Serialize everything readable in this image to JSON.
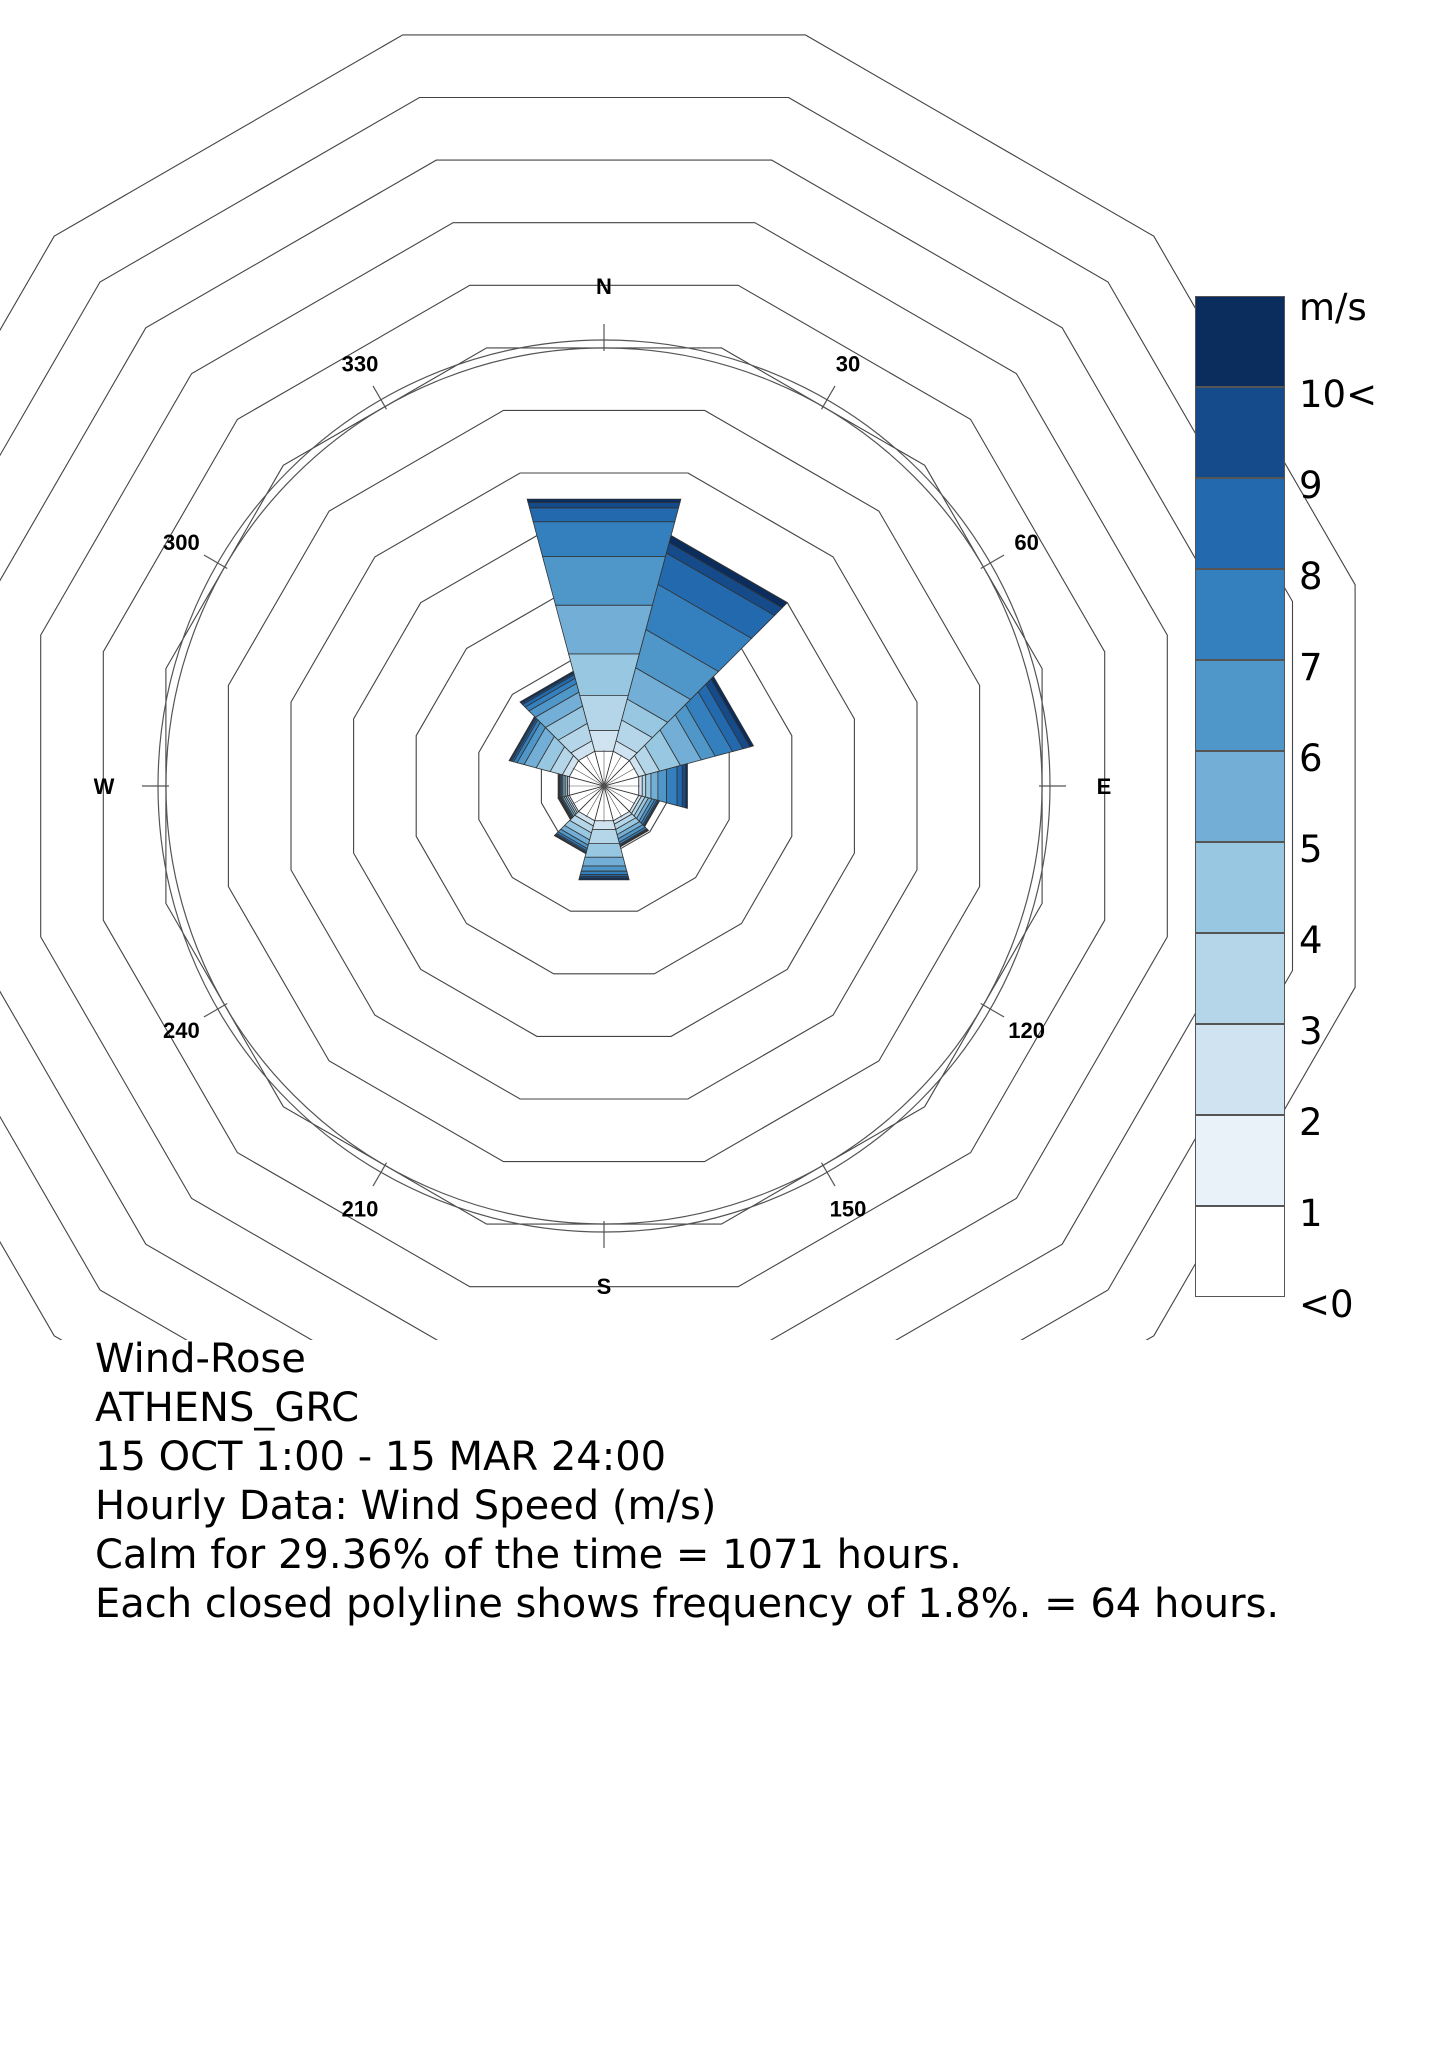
{
  "chart_data": {
    "type": "wind-rose",
    "title": "Wind-Rose",
    "directions": [
      "N",
      "30",
      "60",
      "E",
      "120",
      "150",
      "S",
      "210",
      "240",
      "W",
      "300",
      "330"
    ],
    "direction_degrees": [
      0,
      30,
      60,
      90,
      120,
      150,
      180,
      210,
      240,
      270,
      300,
      330
    ],
    "speed_bins": [
      "<0",
      "1",
      "2",
      "3",
      "4",
      "5",
      "6",
      "7",
      "8",
      "9",
      "10<"
    ],
    "units": "m/s",
    "ring_step_percent": 1.8,
    "ring_step_hours": 64,
    "ring_count": 12,
    "frequencies_percent": {
      "0": [
        1.0,
        0.0,
        0.6,
        1.0,
        1.2,
        1.4,
        1.4,
        1.0,
        0.4,
        0.15,
        0.1
      ],
      "30": [
        1.0,
        0.0,
        0.3,
        0.6,
        0.6,
        0.9,
        1.1,
        1.3,
        0.9,
        0.3,
        0.2
      ],
      "60": [
        1.0,
        0.0,
        0.2,
        0.4,
        0.6,
        0.6,
        0.4,
        0.5,
        0.3,
        0.2,
        0.1
      ],
      "90": [
        1.0,
        0.0,
        0.1,
        0.1,
        0.15,
        0.2,
        0.25,
        0.3,
        0.15,
        0.1,
        0.05
      ],
      "120": [
        1.0,
        0.0,
        0.08,
        0.1,
        0.1,
        0.1,
        0.08,
        0.06,
        0.04,
        0.02,
        0.02
      ],
      "150": [
        1.0,
        0.0,
        0.1,
        0.15,
        0.15,
        0.12,
        0.1,
        0.06,
        0.03,
        0.02,
        0.02
      ],
      "180": [
        1.0,
        0.0,
        0.25,
        0.4,
        0.4,
        0.25,
        0.15,
        0.1,
        0.05,
        0.05,
        0.05
      ],
      "210": [
        1.0,
        0.0,
        0.15,
        0.2,
        0.2,
        0.15,
        0.1,
        0.06,
        0.04,
        0.03,
        0.02
      ],
      "240": [
        1.0,
        0.0,
        0.05,
        0.05,
        0.05,
        0.05,
        0.03,
        0.03,
        0.02,
        0.02,
        0.02
      ],
      "270": [
        1.0,
        0.0,
        0.05,
        0.05,
        0.05,
        0.05,
        0.03,
        0.03,
        0.02,
        0.02,
        0.02
      ],
      "300": [
        1.0,
        0.0,
        0.2,
        0.35,
        0.4,
        0.35,
        0.2,
        0.1,
        0.05,
        0.05,
        0.03
      ],
      "330": [
        1.0,
        0.0,
        0.3,
        0.5,
        0.5,
        0.4,
        0.25,
        0.15,
        0.1,
        0.05,
        0.05
      ]
    },
    "colors": [
      "#ffffff",
      "#eaf2f9",
      "#cfe3f0",
      "#b5d6e9",
      "#98c8e1",
      "#72aed6",
      "#4f96c9",
      "#3480bf",
      "#2269ae",
      "#154b8a",
      "#0a2d5d"
    ]
  },
  "legend": {
    "unit_label": "m/s",
    "labels": [
      "10<",
      "9",
      "8",
      "7",
      "6",
      "5",
      "4",
      "3",
      "2",
      "1",
      "<0"
    ]
  },
  "caption": {
    "title": "Wind-Rose",
    "location": "ATHENS_GRC",
    "period": "15 OCT 1:00 - 15 MAR 24:00",
    "data_type": "Hourly Data: Wind Speed (m/s)",
    "calm": "Calm for 29.36% of the time = 1071 hours.",
    "rings": "Each closed polyline shows frequency of 1.8%. = 64 hours."
  }
}
